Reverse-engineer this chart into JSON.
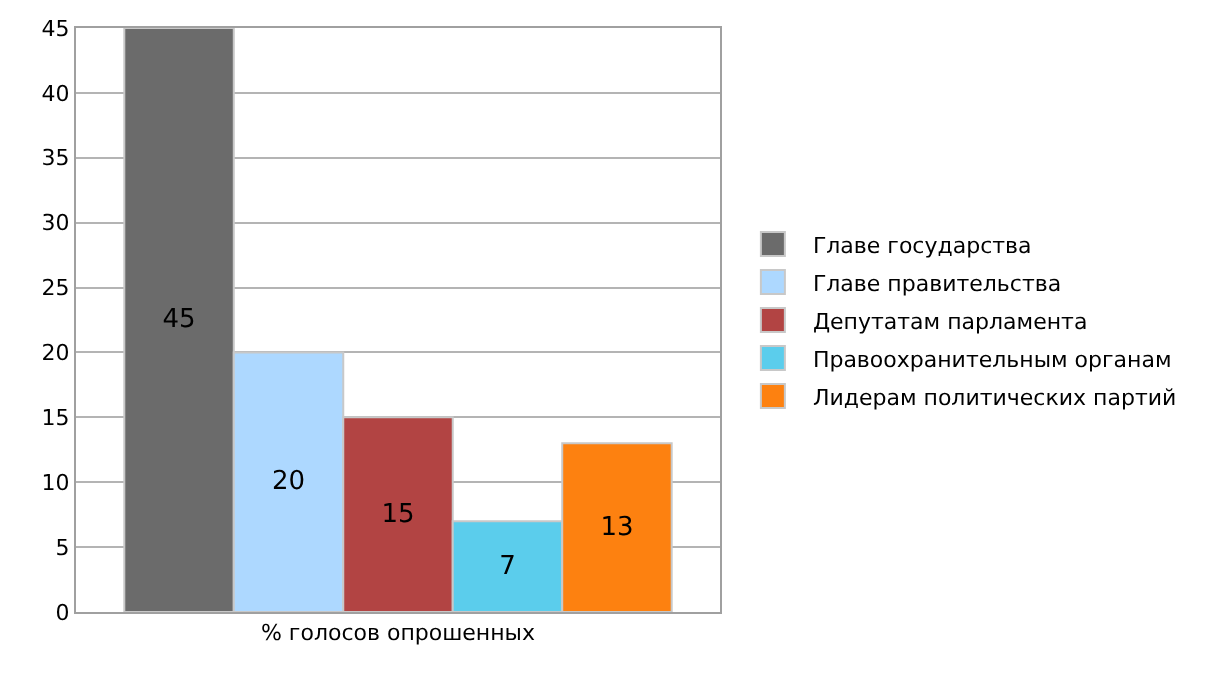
{
  "chart_data": {
    "type": "bar",
    "categories": [
      "% голосов опрошенных"
    ],
    "series": [
      {
        "name": "Главе государства",
        "color": "#6b6b6b",
        "values": [
          45
        ]
      },
      {
        "name": "Главе правительства",
        "color": "#add8ff",
        "values": [
          20
        ]
      },
      {
        "name": "Депутатам парламента",
        "color": "#b24443",
        "values": [
          15
        ]
      },
      {
        "name": "Правоохранительным органам",
        "color": "#5bcdec",
        "values": [
          7
        ]
      },
      {
        "name": "Лидерам политических партий",
        "color": "#fd8110",
        "values": [
          13
        ]
      }
    ],
    "ylim": [
      0,
      45
    ],
    "yticks": [
      0,
      5,
      10,
      15,
      20,
      25,
      30,
      35,
      40,
      45
    ],
    "grid": "y",
    "legend": "right",
    "data_labels": true
  }
}
